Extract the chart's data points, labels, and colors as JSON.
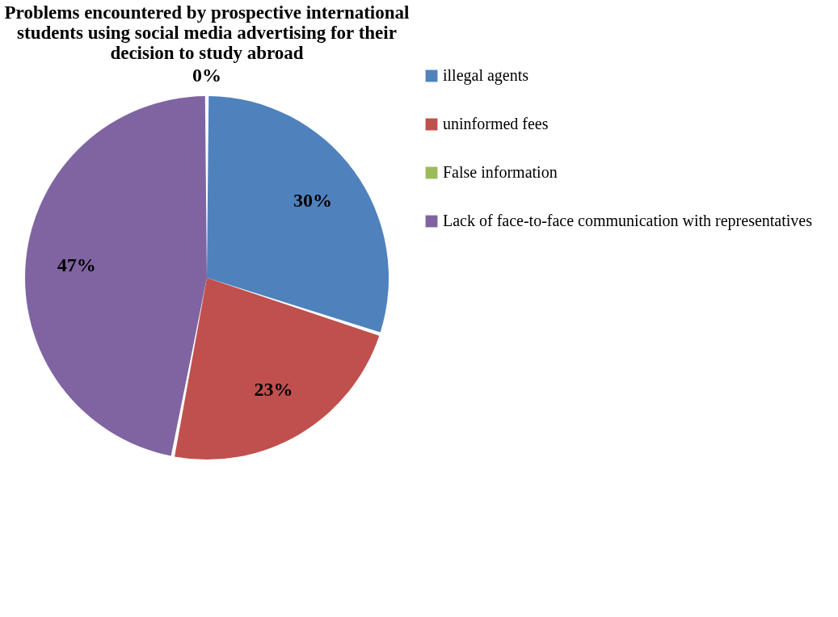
{
  "chart_data": {
    "type": "pie",
    "title": [
      "Problems encountered by prospective international",
      "students using social media advertising for their",
      "decision to study abroad"
    ],
    "categories": [
      "illegal agents",
      "uninformed fees",
      "False information",
      "Lack of face-to-face communication with representatives"
    ],
    "values": [
      30,
      23,
      0,
      47
    ],
    "colors": [
      "#4f81bd",
      "#c0504d",
      "#9bbb59",
      "#8064a2"
    ],
    "value_labels": [
      "30%",
      "23%",
      "0%",
      "47%"
    ],
    "legend": "right"
  }
}
